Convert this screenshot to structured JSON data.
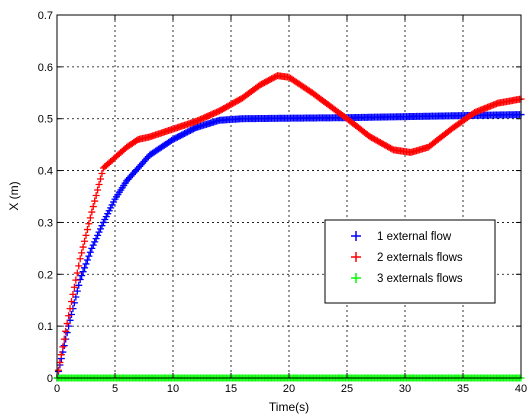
{
  "chart_data": {
    "type": "scatter",
    "xlabel": "Time(s)",
    "ylabel": "X (m)",
    "xlim": [
      0,
      40
    ],
    "ylim": [
      0,
      0.7
    ],
    "x_ticks": [
      0,
      5,
      10,
      15,
      20,
      25,
      30,
      35,
      40
    ],
    "y_ticks": [
      0,
      0.1,
      0.2,
      0.3,
      0.4,
      0.5,
      0.6,
      0.7
    ],
    "x_tick_labels": [
      "0",
      "5",
      "10",
      "15",
      "20",
      "25",
      "30",
      "35",
      "40"
    ],
    "y_tick_labels": [
      "0",
      "0.1",
      "0.2",
      "0.3",
      "0.4",
      "0.5",
      "0.6",
      "0.7"
    ],
    "grid": true,
    "legend_position": "center-right",
    "marker": "+",
    "series": [
      {
        "name": "1 external flow",
        "color": "#0000ff",
        "x": [
          0,
          1,
          2,
          3,
          4,
          5,
          6,
          8,
          10,
          12,
          14,
          16,
          20,
          25,
          30,
          35,
          40
        ],
        "y": [
          0,
          0.1,
          0.19,
          0.25,
          0.3,
          0.345,
          0.38,
          0.43,
          0.46,
          0.483,
          0.497,
          0.5,
          0.501,
          0.502,
          0.504,
          0.506,
          0.508
        ]
      },
      {
        "name": "2 externals flows",
        "color": "#ff0000",
        "x": [
          0,
          1,
          2,
          3,
          4,
          5,
          6,
          7,
          8,
          10,
          12,
          14,
          16,
          17.5,
          19,
          20,
          22,
          25,
          27,
          29,
          30.5,
          32,
          34,
          36,
          38,
          40
        ],
        "y": [
          0,
          0.12,
          0.23,
          0.32,
          0.405,
          0.425,
          0.445,
          0.46,
          0.465,
          0.48,
          0.495,
          0.515,
          0.54,
          0.565,
          0.583,
          0.58,
          0.55,
          0.5,
          0.465,
          0.44,
          0.435,
          0.445,
          0.48,
          0.512,
          0.53,
          0.538
        ]
      },
      {
        "name": "3 externals flows",
        "color": "#00ff00",
        "x": [
          0,
          40
        ],
        "y": [
          0,
          0
        ]
      }
    ]
  }
}
